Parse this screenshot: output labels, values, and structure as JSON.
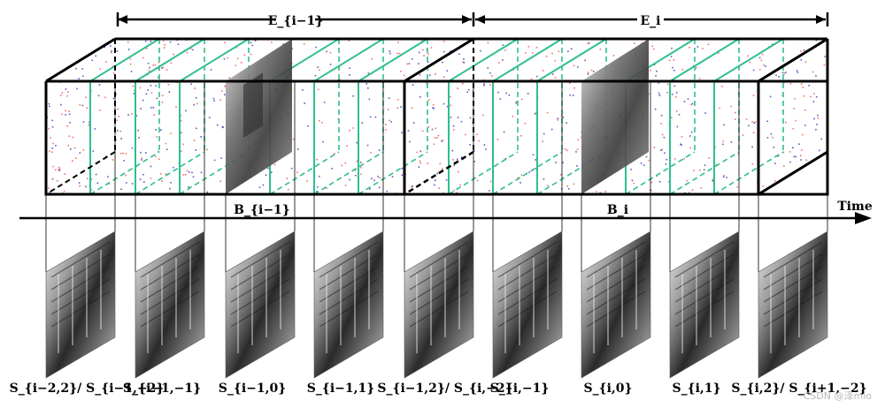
{
  "header": {
    "span_left": "E_{i−1}",
    "span_right": "E_i"
  },
  "volume": {
    "label_left": "B_{i−1}",
    "label_right": "B_i"
  },
  "axis": {
    "label": "Time"
  },
  "slices": [
    "S_{i−2,2}/ S_{i−1,−2}",
    "S_{i−1,−1}",
    "S_{i−1,0}",
    "S_{i−1,1}",
    "S_{i−1,2}/ S_{i,−2}",
    "S_{i,−1}",
    "S_{i,0}",
    "S_{i,1}",
    "S_{i,2}/ S_{i+1,−2}"
  ],
  "watermark": "CSDN @泽mio",
  "colors": {
    "frame": "#000000",
    "slice_plane": "#2fbf8f",
    "event_positive": "#e8413c",
    "event_negative": "#2c1fb0"
  }
}
